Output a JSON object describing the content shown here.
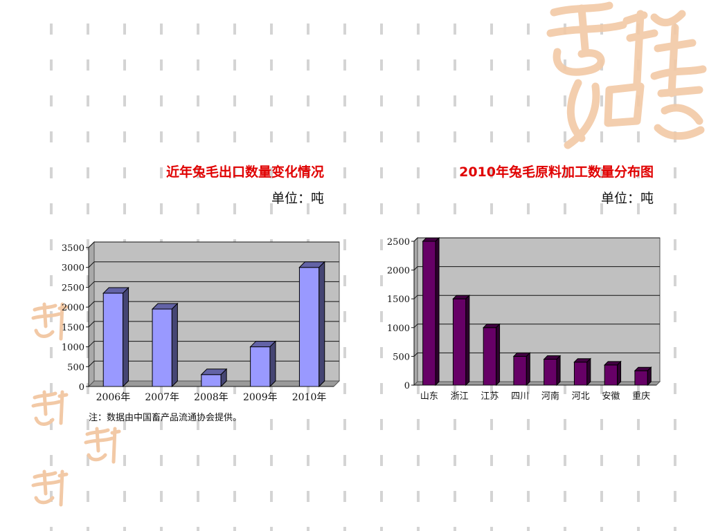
{
  "chart_data": [
    {
      "type": "bar",
      "title": "近年兔毛出口数量变化情况",
      "subtitle": "单位：吨",
      "categories": [
        "2006年",
        "2007年",
        "2008年",
        "2009年",
        "2010年"
      ],
      "values": [
        2350,
        1950,
        300,
        1000,
        3000
      ],
      "ylim": [
        0,
        3500
      ],
      "yticks": [
        "0",
        "500",
        "1000",
        "1500",
        "2000",
        "2500",
        "3000",
        "3500"
      ],
      "grid": true,
      "bar_color": "#9999ff",
      "note": "注：数据由中国畜产品流通协会提供。"
    },
    {
      "type": "bar",
      "title": "2010年兔毛原料加工数量分布图",
      "subtitle": "单位：吨",
      "categories": [
        "山东",
        "浙江",
        "江苏",
        "四川",
        "河南",
        "河北",
        "安徽",
        "重庆"
      ],
      "values": [
        2500,
        1500,
        1000,
        500,
        450,
        400,
        350,
        250
      ],
      "ylim": [
        0,
        2500
      ],
      "yticks": [
        "0",
        "500",
        "1000",
        "1500",
        "2000",
        "2500"
      ],
      "grid": true,
      "bar_color": "#660066"
    }
  ],
  "colors": {
    "title": "#e00000",
    "plot_background": "#c0c0c0",
    "pattern": "#d4d4d4",
    "decoration": "#f2c9a6"
  },
  "decoration": {
    "icon": "auspicious-calligraphy-seal-icon",
    "text": "吉祥如意"
  }
}
